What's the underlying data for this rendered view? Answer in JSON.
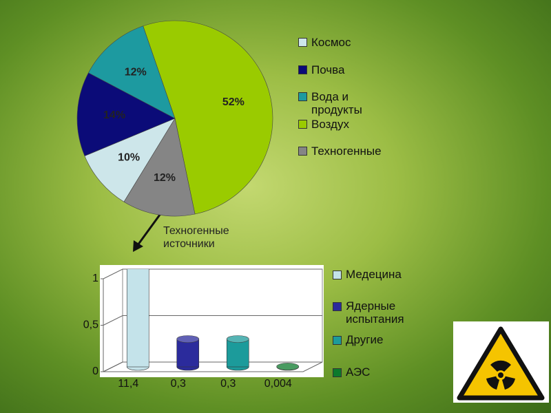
{
  "chart_data": [
    {
      "type": "pie",
      "categories": [
        "Космос",
        "Почва",
        "Вода и продукты",
        "Воздух",
        "Техногенные"
      ],
      "values": [
        10,
        14,
        12,
        52,
        12
      ],
      "value_labels": [
        "10%",
        "14%",
        "12%",
        "52%",
        "12%"
      ],
      "colors": [
        "#cde6ea",
        "#0b0b78",
        "#1d9aa0",
        "#9acb00",
        "#858585"
      ],
      "annotation": "Техногенные источники"
    },
    {
      "type": "bar",
      "series": [
        {
          "name": "Медецина",
          "color": "#c4e3ea",
          "values": [
            11.4
          ],
          "value_labels": [
            "11,4"
          ]
        },
        {
          "name": "Ядерные испытания",
          "color": "#2b2b9c",
          "values": [
            0.3
          ],
          "value_labels": [
            "0,3"
          ]
        },
        {
          "name": "Другие",
          "color": "#1c9b9b",
          "values": [
            0.3
          ],
          "value_labels": [
            "0,3"
          ]
        },
        {
          "name": "АЭС",
          "color": "#0c7a2c",
          "values": [
            0.004
          ],
          "value_labels": [
            "0,004"
          ]
        }
      ],
      "ylim": [
        0,
        1
      ],
      "yticks": [
        0,
        {
          "value": 0.5,
          "label": "0,5"
        },
        1
      ],
      "grid": true
    }
  ]
}
